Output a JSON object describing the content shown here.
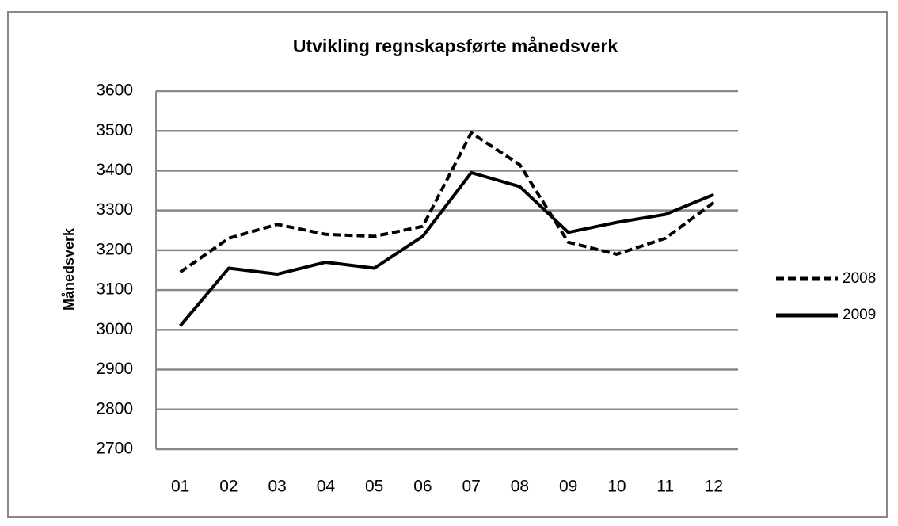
{
  "chart_data": {
    "type": "line",
    "title": "Utvikling regnskapsførte månedsverk",
    "y_label": "Månedsverk",
    "categories": [
      "01",
      "02",
      "03",
      "04",
      "05",
      "06",
      "07",
      "08",
      "09",
      "10",
      "11",
      "12"
    ],
    "series": [
      {
        "name": "2008",
        "color": "#000000",
        "dash": "dashed",
        "values": [
          3145,
          3230,
          3265,
          3240,
          3235,
          3260,
          3495,
          3415,
          3220,
          3190,
          3230,
          3320
        ]
      },
      {
        "name": "2009",
        "color": "#000000",
        "dash": "solid",
        "values": [
          3010,
          3155,
          3140,
          3170,
          3155,
          3235,
          3395,
          3360,
          3245,
          3270,
          3290,
          3340
        ]
      }
    ],
    "ylim": [
      2700,
      3600
    ],
    "yticks": [
      2700,
      2800,
      2900,
      3000,
      3100,
      3200,
      3300,
      3400,
      3500,
      3600
    ],
    "grid": true,
    "legend": "right"
  }
}
